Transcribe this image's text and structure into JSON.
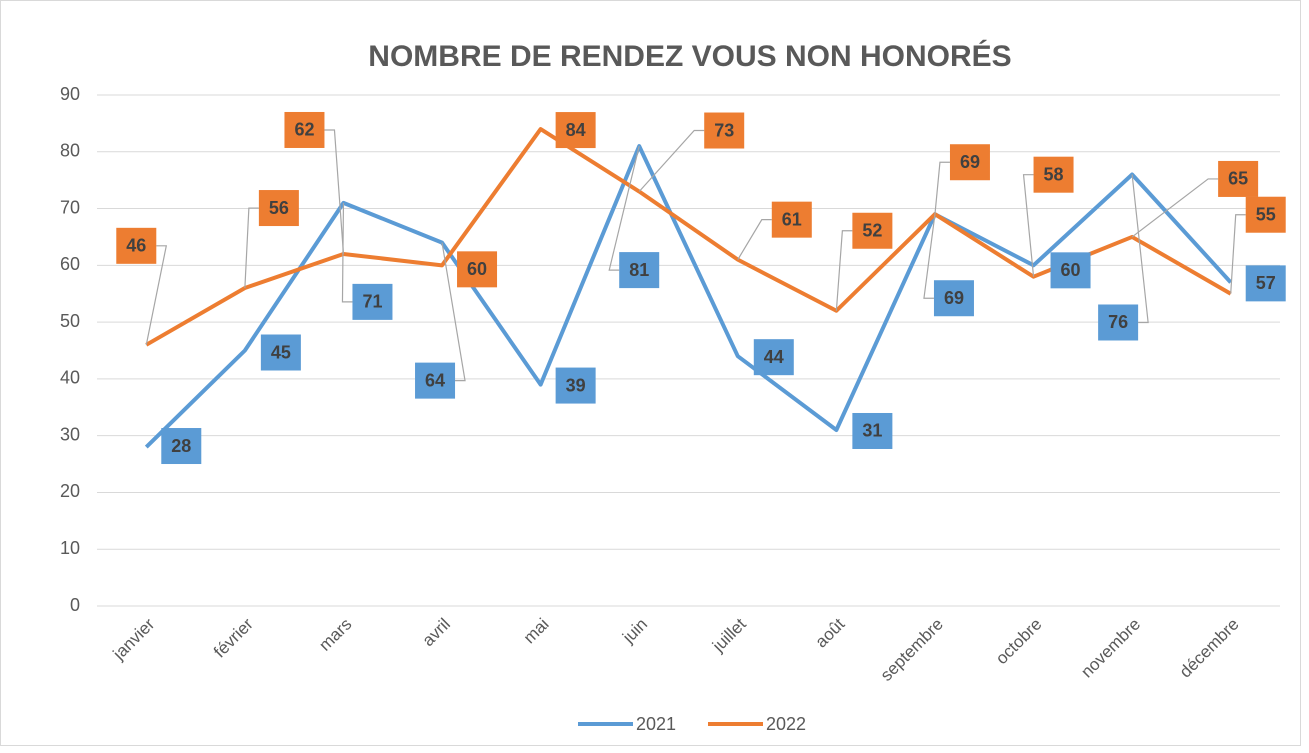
{
  "chart_data": {
    "type": "line",
    "title": "NOMBRE DE RENDEZ VOUS NON HONORÉS",
    "categories": [
      "janvier",
      "février",
      "mars",
      "avril",
      "mai",
      "juin",
      "juillet",
      "août",
      "septembre",
      "octobre",
      "novembre",
      "décembre"
    ],
    "series": [
      {
        "name": "2021",
        "color": "#5b9bd5",
        "values": [
          28,
          45,
          71,
          64,
          39,
          81,
          44,
          31,
          69,
          60,
          76,
          57
        ]
      },
      {
        "name": "2022",
        "color": "#ed7d31",
        "values": [
          46,
          56,
          62,
          60,
          84,
          73,
          61,
          52,
          69,
          58,
          65,
          55
        ]
      }
    ],
    "ylim": [
      0,
      90
    ],
    "yticks": [
      0,
      10,
      20,
      30,
      40,
      50,
      60,
      70,
      80,
      90
    ],
    "grid": true,
    "legend": "bottom"
  }
}
